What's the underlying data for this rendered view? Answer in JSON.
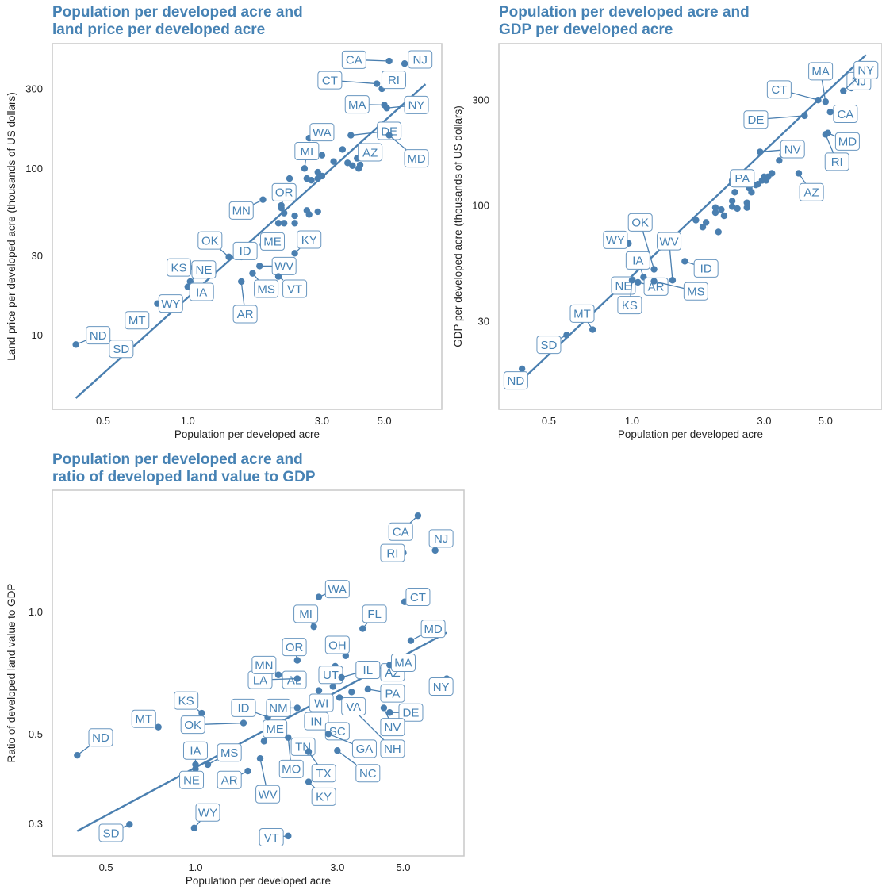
{
  "colors": {
    "title": "#4682b4",
    "points": "#4a7fb0",
    "frame": "#c8c8c8"
  },
  "chart_data": [
    {
      "type": "scatter",
      "title": "Population per developed acre and\nland price per developed acre",
      "xlabel": "Population per developed acre",
      "ylabel": "Land price per developed acre (thousands of US dollars)",
      "xscale": "log",
      "yscale": "log",
      "xlim": [
        0.33,
        8.0
      ],
      "ylim": [
        3.6,
        560
      ],
      "xticks": [
        0.5,
        1.0,
        3.0,
        5.0
      ],
      "xtick_labels": [
        "0.5",
        "1.0",
        "3.0",
        "5.0"
      ],
      "yticks": [
        10,
        30,
        100,
        300
      ],
      "ytick_labels": [
        "10",
        "30",
        "100",
        "300"
      ],
      "grid": false,
      "fit_line": [
        [
          0.4,
          4.2
        ],
        [
          7.0,
          320
        ]
      ],
      "labeled_points": [
        {
          "label": "ND",
          "x": 0.4,
          "y": 8.8,
          "lx": 0.48,
          "ly": 10.0
        },
        {
          "label": "SD",
          "x": 0.58,
          "y": 7.8,
          "lx": 0.58,
          "ly": 8.3
        },
        {
          "label": "MT",
          "x": 0.7,
          "y": 13.0,
          "lx": 0.66,
          "ly": 12.3
        },
        {
          "label": "WY",
          "x": 0.78,
          "y": 15.5,
          "lx": 0.87,
          "ly": 15.5
        },
        {
          "label": "KS",
          "x": 1.05,
          "y": 25.5,
          "lx": 0.93,
          "ly": 25.5
        },
        {
          "label": "NE",
          "x": 1.02,
          "y": 21.0,
          "lx": 1.14,
          "ly": 24.8
        },
        {
          "label": "IA",
          "x": 1.0,
          "y": 19.5,
          "lx": 1.12,
          "ly": 18.2
        },
        {
          "label": "OK",
          "x": 1.4,
          "y": 29.5,
          "lx": 1.2,
          "ly": 37.0
        },
        {
          "label": "ID",
          "x": 1.55,
          "y": 29.5,
          "lx": 1.6,
          "ly": 32.0
        },
        {
          "label": "ME",
          "x": 1.85,
          "y": 35.0,
          "lx": 2.0,
          "ly": 36.5
        },
        {
          "label": "AR",
          "x": 1.55,
          "y": 21.0,
          "lx": 1.6,
          "ly": 13.4
        },
        {
          "label": "MS",
          "x": 1.7,
          "y": 23.5,
          "lx": 1.9,
          "ly": 19.0
        },
        {
          "label": "WV",
          "x": 1.8,
          "y": 26.0,
          "lx": 2.2,
          "ly": 26.0
        },
        {
          "label": "VT",
          "x": 2.1,
          "y": 22.5,
          "lx": 2.4,
          "ly": 19.0
        },
        {
          "label": "KY",
          "x": 2.4,
          "y": 31.0,
          "lx": 2.7,
          "ly": 37.5
        },
        {
          "label": "MN",
          "x": 1.85,
          "y": 65.0,
          "lx": 1.55,
          "ly": 56.0
        },
        {
          "label": "OR",
          "x": 2.15,
          "y": 58.0,
          "lx": 2.2,
          "ly": 72.0
        },
        {
          "label": "MI",
          "x": 2.6,
          "y": 100.0,
          "lx": 2.65,
          "ly": 127.0
        },
        {
          "label": "WA",
          "x": 2.7,
          "y": 152.0,
          "lx": 3.0,
          "ly": 165.0
        },
        {
          "label": "AZ",
          "x": 4.0,
          "y": 115.0,
          "lx": 4.45,
          "ly": 125.0
        },
        {
          "label": "DE",
          "x": 3.8,
          "y": 158.0,
          "lx": 5.2,
          "ly": 168.0
        },
        {
          "label": "MD",
          "x": 5.2,
          "y": 158.0,
          "lx": 6.5,
          "ly": 115.0
        },
        {
          "label": "MA",
          "x": 5.0,
          "y": 240.0,
          "lx": 4.0,
          "ly": 242.0
        },
        {
          "label": "NY",
          "x": 5.1,
          "y": 230.0,
          "lx": 6.5,
          "ly": 240.0
        },
        {
          "label": "CT",
          "x": 4.7,
          "y": 322.0,
          "lx": 3.2,
          "ly": 338.0
        },
        {
          "label": "RI",
          "x": 4.9,
          "y": 300.0,
          "lx": 5.4,
          "ly": 340.0
        },
        {
          "label": "CA",
          "x": 5.2,
          "y": 440.0,
          "lx": 3.9,
          "ly": 448.0
        },
        {
          "label": "NJ",
          "x": 5.9,
          "y": 425.0,
          "lx": 6.7,
          "ly": 450.0
        }
      ],
      "extra_points": [
        [
          2.1,
          47
        ],
        [
          2.2,
          47
        ],
        [
          2.4,
          47
        ],
        [
          2.2,
          54
        ],
        [
          2.4,
          52
        ],
        [
          2.7,
          53
        ],
        [
          2.65,
          56
        ],
        [
          2.9,
          55
        ],
        [
          2.3,
          87
        ],
        [
          2.65,
          87
        ],
        [
          2.75,
          85
        ],
        [
          2.9,
          87
        ],
        [
          2.9,
          95
        ],
        [
          3.0,
          90
        ],
        [
          3.0,
          120
        ],
        [
          3.3,
          110
        ],
        [
          3.7,
          108
        ],
        [
          3.55,
          130
        ],
        [
          3.85,
          104
        ],
        [
          4.05,
          100
        ],
        [
          4.1,
          105
        ],
        [
          2.3,
          75
        ],
        [
          2.15,
          60
        ]
      ]
    },
    {
      "type": "scatter",
      "title": "Population per developed acre and\nGDP per developed acre",
      "xlabel": "Population per developed acre",
      "ylabel": "GDP per developed acre (thousands of US dollars)",
      "xscale": "log",
      "yscale": "log",
      "xlim": [
        0.33,
        8.0
      ],
      "ylim": [
        12,
        540
      ],
      "xticks": [
        0.5,
        1.0,
        3.0,
        5.0
      ],
      "xtick_labels": [
        "0.5",
        "1.0",
        "3.0",
        "5.0"
      ],
      "yticks": [
        30,
        100,
        300
      ],
      "ytick_labels": [
        "30",
        "100",
        "300"
      ],
      "grid": false,
      "fit_line": [
        [
          0.4,
          16.3
        ],
        [
          7.0,
          480
        ]
      ],
      "labeled_points": [
        {
          "label": "ND",
          "x": 0.4,
          "y": 18.3,
          "lx": 0.38,
          "ly": 16.2
        },
        {
          "label": "SD",
          "x": 0.58,
          "y": 26.0,
          "lx": 0.5,
          "ly": 23.5
        },
        {
          "label": "MT",
          "x": 0.72,
          "y": 27.5,
          "lx": 0.66,
          "ly": 32.5
        },
        {
          "label": "WY",
          "x": 0.97,
          "y": 67.5,
          "lx": 0.87,
          "ly": 70.0
        },
        {
          "label": "OK",
          "x": 1.2,
          "y": 51.5,
          "lx": 1.07,
          "ly": 84.0
        },
        {
          "label": "IA",
          "x": 1.1,
          "y": 47.5,
          "lx": 1.05,
          "ly": 56.5
        },
        {
          "label": "NE",
          "x": 1.0,
          "y": 42.5,
          "lx": 0.93,
          "ly": 43.5
        },
        {
          "label": "AR",
          "x": 1.05,
          "y": 45.0,
          "lx": 1.22,
          "ly": 43.0
        },
        {
          "label": "KS",
          "x": 1.0,
          "y": 46.0,
          "lx": 0.98,
          "ly": 35.5
        },
        {
          "label": "MS",
          "x": 1.2,
          "y": 45.5,
          "lx": 1.7,
          "ly": 41.0
        },
        {
          "label": "WV",
          "x": 1.4,
          "y": 46.0,
          "lx": 1.36,
          "ly": 69.0
        },
        {
          "label": "ID",
          "x": 1.55,
          "y": 56.0,
          "lx": 1.85,
          "ly": 52.0
        },
        {
          "label": "PA",
          "x": 2.3,
          "y": 126.0,
          "lx": 2.5,
          "ly": 133.0
        },
        {
          "label": "AZ",
          "x": 4.0,
          "y": 140.0,
          "lx": 4.45,
          "ly": 115.0
        },
        {
          "label": "NV",
          "x": 2.9,
          "y": 175.0,
          "lx": 3.8,
          "ly": 180.0
        },
        {
          "label": "DE",
          "x": 4.2,
          "y": 255.0,
          "lx": 2.8,
          "ly": 245.0
        },
        {
          "label": "RI",
          "x": 5.0,
          "y": 210.0,
          "lx": 5.5,
          "ly": 158.0
        },
        {
          "label": "MD",
          "x": 5.1,
          "y": 213.0,
          "lx": 6.0,
          "ly": 195.0
        },
        {
          "label": "CA",
          "x": 5.2,
          "y": 265.0,
          "lx": 5.9,
          "ly": 260.0
        },
        {
          "label": "CT",
          "x": 4.7,
          "y": 300.0,
          "lx": 3.4,
          "ly": 335.0
        },
        {
          "label": "MA",
          "x": 5.0,
          "y": 295.0,
          "lx": 4.8,
          "ly": 405.0
        },
        {
          "label": "NJ",
          "x": 6.2,
          "y": 340.0,
          "lx": 6.6,
          "ly": 365.0
        },
        {
          "label": "NY",
          "x": 5.8,
          "y": 330.0,
          "lx": 7.0,
          "ly": 410.0
        }
      ],
      "extra_points": [
        [
          1.7,
          86
        ],
        [
          1.8,
          80
        ],
        [
          1.85,
          84
        ],
        [
          2.0,
          93
        ],
        [
          2.0,
          98
        ],
        [
          2.1,
          96
        ],
        [
          2.15,
          90
        ],
        [
          2.3,
          99
        ],
        [
          2.3,
          105
        ],
        [
          2.4,
          97
        ],
        [
          2.6,
          98
        ],
        [
          2.6,
          103
        ],
        [
          2.65,
          120
        ],
        [
          2.7,
          115
        ],
        [
          2.8,
          124
        ],
        [
          2.85,
          125
        ],
        [
          2.95,
          130
        ],
        [
          3.0,
          135
        ],
        [
          3.05,
          130
        ],
        [
          3.1,
          135
        ],
        [
          3.2,
          140
        ],
        [
          3.4,
          160
        ],
        [
          3.5,
          170
        ],
        [
          3.7,
          180
        ],
        [
          3.8,
          183
        ],
        [
          2.3,
          130
        ],
        [
          2.35,
          115
        ],
        [
          2.05,
          76
        ]
      ]
    },
    {
      "type": "scatter",
      "title": "Population per developed acre and\nratio of developed land value to GDP",
      "xlabel": "Population per developed acre",
      "ylabel": "Ratio of developed land value to GDP",
      "xscale": "log",
      "yscale": "log",
      "xlim": [
        0.33,
        8.0
      ],
      "ylim": [
        0.25,
        2.0
      ],
      "xticks": [
        0.5,
        1.0,
        3.0,
        5.0
      ],
      "xtick_labels": [
        "0.5",
        "1.0",
        "3.0",
        "5.0"
      ],
      "yticks": [
        0.3,
        0.5,
        1.0
      ],
      "ytick_labels": [
        "0.3",
        "0.5",
        "1.0"
      ],
      "grid": false,
      "fit_line": [
        [
          0.4,
          0.288
        ],
        [
          7.0,
          0.89
        ]
      ],
      "labeled_points": [
        {
          "label": "ND",
          "x": 0.4,
          "y": 0.443,
          "lx": 0.48,
          "ly": 0.49
        },
        {
          "label": "SD",
          "x": 0.6,
          "y": 0.299,
          "lx": 0.52,
          "ly": 0.285
        },
        {
          "label": "WY",
          "x": 0.99,
          "y": 0.293,
          "lx": 1.1,
          "ly": 0.32
        },
        {
          "label": "VT",
          "x": 2.05,
          "y": 0.28,
          "lx": 1.8,
          "ly": 0.278
        },
        {
          "label": "MT",
          "x": 0.75,
          "y": 0.52,
          "lx": 0.67,
          "ly": 0.545
        },
        {
          "label": "KS",
          "x": 1.05,
          "y": 0.563,
          "lx": 0.93,
          "ly": 0.605
        },
        {
          "label": "OK",
          "x": 1.45,
          "y": 0.532,
          "lx": 0.98,
          "ly": 0.527
        },
        {
          "label": "IA",
          "x": 1.0,
          "y": 0.42,
          "lx": 1.0,
          "ly": 0.455
        },
        {
          "label": "NE",
          "x": 1.0,
          "y": 0.41,
          "lx": 0.97,
          "ly": 0.385
        },
        {
          "label": "MS",
          "x": 1.1,
          "y": 0.42,
          "lx": 1.3,
          "ly": 0.45
        },
        {
          "label": "AR",
          "x": 1.5,
          "y": 0.405,
          "lx": 1.3,
          "ly": 0.385
        },
        {
          "label": "WV",
          "x": 1.65,
          "y": 0.435,
          "lx": 1.75,
          "ly": 0.355
        },
        {
          "label": "ME",
          "x": 1.7,
          "y": 0.48,
          "lx": 1.85,
          "ly": 0.515
        },
        {
          "label": "ID",
          "x": 1.75,
          "y": 0.55,
          "lx": 1.45,
          "ly": 0.58
        },
        {
          "label": "MO",
          "x": 2.05,
          "y": 0.49,
          "lx": 2.1,
          "ly": 0.41
        },
        {
          "label": "TN",
          "x": 2.3,
          "y": 0.48,
          "lx": 2.3,
          "ly": 0.465
        },
        {
          "label": "TX",
          "x": 2.4,
          "y": 0.452,
          "lx": 2.7,
          "ly": 0.4
        },
        {
          "label": "KY",
          "x": 2.4,
          "y": 0.381,
          "lx": 2.7,
          "ly": 0.35
        },
        {
          "label": "NM",
          "x": 2.2,
          "y": 0.58,
          "lx": 1.9,
          "ly": 0.58
        },
        {
          "label": "IN",
          "x": 2.4,
          "y": 0.535,
          "lx": 2.55,
          "ly": 0.538
        },
        {
          "label": "WI",
          "x": 2.6,
          "y": 0.58,
          "lx": 2.65,
          "ly": 0.597
        },
        {
          "label": "SC",
          "x": 2.8,
          "y": 0.51,
          "lx": 3.0,
          "ly": 0.508
        },
        {
          "label": "GA",
          "x": 2.8,
          "y": 0.5,
          "lx": 3.7,
          "ly": 0.46
        },
        {
          "label": "NC",
          "x": 3.0,
          "y": 0.455,
          "lx": 3.8,
          "ly": 0.4
        },
        {
          "label": "NH",
          "x": 3.2,
          "y": 0.6,
          "lx": 4.6,
          "ly": 0.46
        },
        {
          "label": "VA",
          "x": 3.05,
          "y": 0.615,
          "lx": 3.4,
          "ly": 0.585
        },
        {
          "label": "DE",
          "x": 4.5,
          "y": 0.565,
          "lx": 5.3,
          "ly": 0.565
        },
        {
          "label": "NV",
          "x": 4.3,
          "y": 0.58,
          "lx": 4.6,
          "ly": 0.52
        },
        {
          "label": "PA",
          "x": 3.8,
          "y": 0.645,
          "lx": 4.6,
          "ly": 0.63
        },
        {
          "label": "AZ",
          "x": 4.0,
          "y": 0.73,
          "lx": 4.6,
          "ly": 0.71
        },
        {
          "label": "MA",
          "x": 4.5,
          "y": 0.74,
          "lx": 5.0,
          "ly": 0.75
        },
        {
          "label": "UT",
          "x": 2.9,
          "y": 0.655,
          "lx": 2.85,
          "ly": 0.7
        },
        {
          "label": "IL",
          "x": 3.1,
          "y": 0.69,
          "lx": 3.8,
          "ly": 0.72
        },
        {
          "label": "OH",
          "x": 3.2,
          "y": 0.78,
          "lx": 3.0,
          "ly": 0.83
        },
        {
          "label": "AL",
          "x": 2.25,
          "y": 0.66,
          "lx": 2.15,
          "ly": 0.68
        },
        {
          "label": "LA",
          "x": 2.2,
          "y": 0.685,
          "lx": 1.65,
          "ly": 0.68
        },
        {
          "label": "MN",
          "x": 1.9,
          "y": 0.7,
          "lx": 1.7,
          "ly": 0.74
        },
        {
          "label": "OR",
          "x": 2.2,
          "y": 0.76,
          "lx": 2.15,
          "ly": 0.82
        },
        {
          "label": "MI",
          "x": 2.5,
          "y": 0.92,
          "lx": 2.35,
          "ly": 0.99
        },
        {
          "label": "WA",
          "x": 2.6,
          "y": 1.09,
          "lx": 3.0,
          "ly": 1.14
        },
        {
          "label": "FL",
          "x": 3.65,
          "y": 0.91,
          "lx": 4.0,
          "ly": 0.99
        },
        {
          "label": "MD",
          "x": 5.3,
          "y": 0.85,
          "lx": 6.3,
          "ly": 0.91
        },
        {
          "label": "CT",
          "x": 5.05,
          "y": 1.06,
          "lx": 5.6,
          "ly": 1.09
        },
        {
          "label": "RI",
          "x": 5.0,
          "y": 1.4,
          "lx": 4.6,
          "ly": 1.4
        },
        {
          "label": "CA",
          "x": 5.6,
          "y": 1.73,
          "lx": 4.9,
          "ly": 1.58
        },
        {
          "label": "NJ",
          "x": 6.4,
          "y": 1.42,
          "lx": 6.7,
          "ly": 1.52
        },
        {
          "label": "NY",
          "x": 7.0,
          "y": 0.685,
          "lx": 6.7,
          "ly": 0.655
        }
      ],
      "extra_points": [
        [
          2.95,
          0.735
        ],
        [
          3.35,
          0.635
        ],
        [
          3.4,
          0.59
        ],
        [
          2.6,
          0.64
        ]
      ]
    }
  ]
}
